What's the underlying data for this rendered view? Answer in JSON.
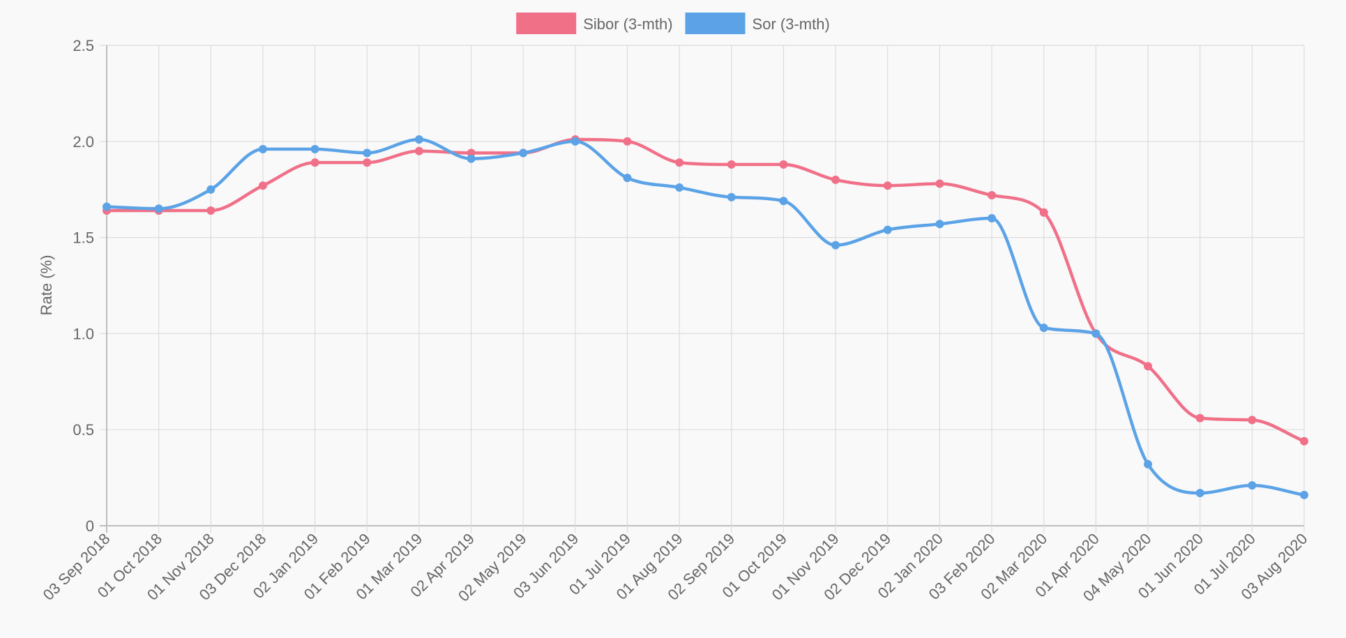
{
  "chart_data": {
    "type": "line",
    "title": "",
    "xlabel": "",
    "ylabel": "Rate (%)",
    "ylim": [
      0,
      2.5
    ],
    "yticks": [
      "0",
      "0.5",
      "1.0",
      "1.5",
      "2.0",
      "2.5"
    ],
    "ytick_values": [
      0,
      0.5,
      1.0,
      1.5,
      2.0,
      2.5
    ],
    "grid": true,
    "legend_position": "top-center",
    "categories": [
      "03 Sep 2018",
      "01 Oct 2018",
      "01 Nov 2018",
      "03 Dec 2018",
      "02 Jan 2019",
      "01 Feb 2019",
      "01 Mar 2019",
      "02 Apr 2019",
      "02 May 2019",
      "03 Jun 2019",
      "01 Jul 2019",
      "01 Aug 2019",
      "02 Sep 2019",
      "01 Oct 2019",
      "01 Nov 2019",
      "02 Dec 2019",
      "02 Jan 2020",
      "03 Feb 2020",
      "02 Mar 2020",
      "01 Apr 2020",
      "04 May 2020",
      "01 Jun 2020",
      "01 Jul 2020",
      "03 Aug 2020"
    ],
    "series": [
      {
        "name": "Sibor (3-mth)",
        "color": "#f07088",
        "values": [
          1.64,
          1.64,
          1.64,
          1.77,
          1.89,
          1.89,
          1.95,
          1.94,
          1.94,
          2.01,
          2.0,
          1.89,
          1.88,
          1.88,
          1.8,
          1.77,
          1.78,
          1.72,
          1.63,
          1.0,
          0.83,
          0.56,
          0.55,
          0.44
        ]
      },
      {
        "name": "Sor (3-mth)",
        "color": "#5ba3e6",
        "values": [
          1.66,
          1.65,
          1.75,
          1.96,
          1.96,
          1.94,
          2.01,
          1.91,
          1.94,
          2.0,
          1.81,
          1.76,
          1.71,
          1.69,
          1.46,
          1.54,
          1.57,
          1.6,
          1.03,
          1.0,
          0.32,
          0.17,
          0.21,
          0.16
        ]
      }
    ]
  }
}
